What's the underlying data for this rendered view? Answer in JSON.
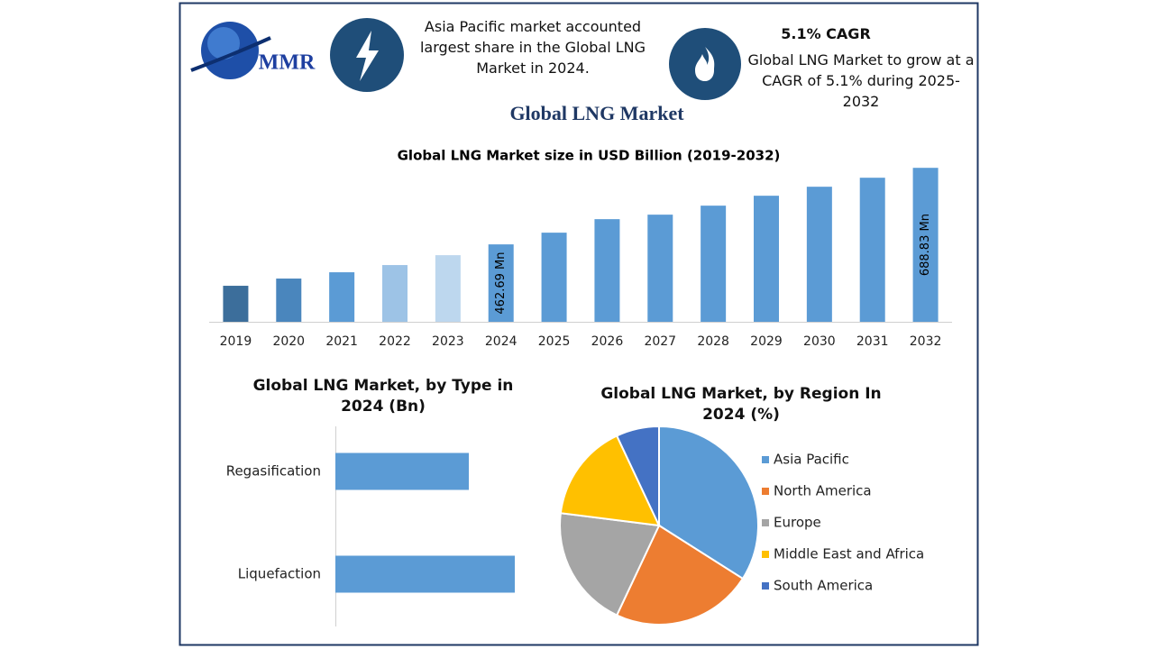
{
  "header": {
    "logo": "MMR",
    "left_note": "Asia Pacific market accounted largest share in the Global LNG Market in 2024.",
    "right_heading": "5.1% CAGR",
    "right_note": "Global LNG Market to grow at a CAGR of 5.1% during 2025-2032"
  },
  "title": "Global LNG Market",
  "chart_data": [
    {
      "type": "bar",
      "title": "Global LNG Market size in USD Billion (2019-2032)",
      "categories": [
        "2019",
        "2020",
        "2021",
        "2022",
        "2023",
        "2024",
        "2025",
        "2026",
        "2027",
        "2028",
        "2029",
        "2030",
        "2031",
        "2032"
      ],
      "values": [
        340.4,
        361.7,
        380.3,
        401.6,
        430.8,
        462.69,
        497.3,
        537.2,
        550.5,
        577.1,
        606.4,
        633,
        659.6,
        688.83
      ],
      "value_labels": [
        null,
        null,
        null,
        null,
        null,
        "462.69 Mn",
        null,
        null,
        null,
        null,
        null,
        null,
        null,
        "688.83 Mn"
      ],
      "colors": [
        "#3c6e9b",
        "#4a86bd",
        "#5b9bd5",
        "#9dc3e6",
        "#bdd7ee",
        "#5b9bd5",
        "#5b9bd5",
        "#5b9bd5",
        "#5b9bd5",
        "#5b9bd5",
        "#5b9bd5",
        "#5b9bd5",
        "#5b9bd5",
        "#5b9bd5"
      ],
      "ylim": [
        234,
        700
      ]
    },
    {
      "type": "barh",
      "title": "Global LNG Market, by Type in 2024 (Bn)",
      "categories": [
        "Regasification",
        "Liquefaction"
      ],
      "values": [
        74,
        99.5
      ],
      "color": "#5b9bd5",
      "xlim": [
        0,
        100
      ]
    },
    {
      "type": "pie",
      "title": "Global LNG Market, by Region In 2024 (%)",
      "categories": [
        "Asia Pacific",
        "North America",
        "Europe",
        "Middle East and Africa",
        "South America"
      ],
      "values": [
        34,
        23,
        20,
        16,
        7
      ],
      "colors": [
        "#5b9bd5",
        "#ed7d31",
        "#a5a5a5",
        "#ffc000",
        "#4472c4"
      ],
      "legend": "right"
    }
  ]
}
